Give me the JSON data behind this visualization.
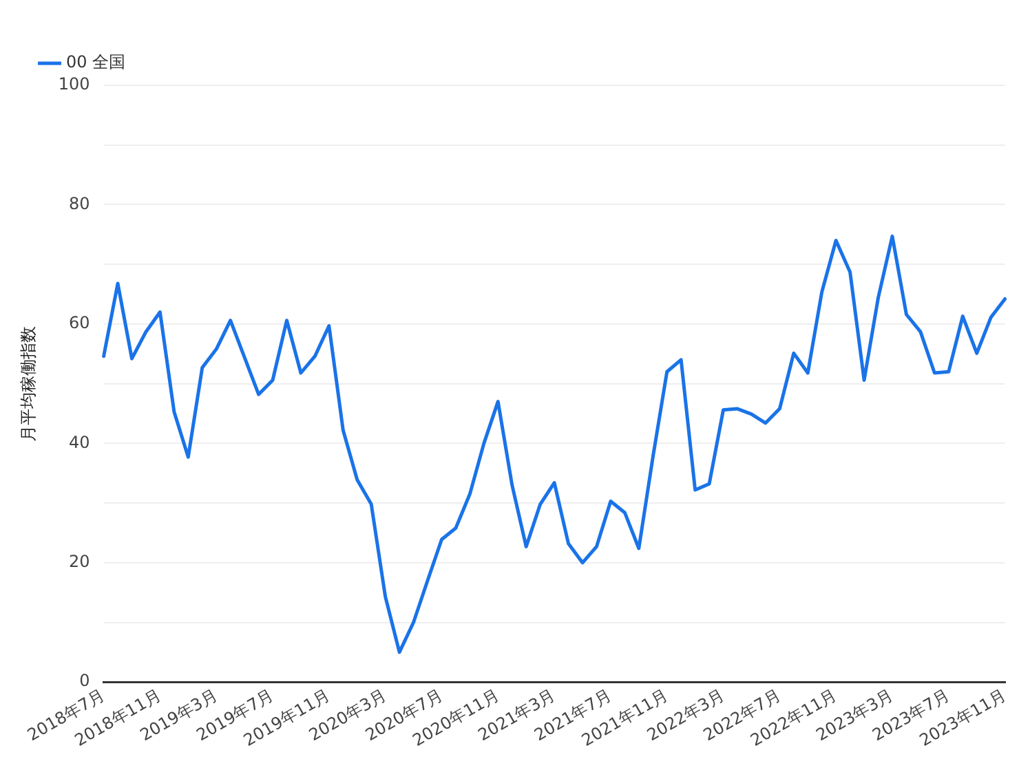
{
  "chart_data": {
    "type": "line",
    "ylabel": "月平均稼働指数",
    "categories": [
      "2018年7月",
      null,
      null,
      null,
      "2018年11月",
      null,
      null,
      null,
      "2019年3月",
      null,
      null,
      null,
      "2019年7月",
      null,
      null,
      null,
      "2019年11月",
      null,
      null,
      null,
      "2020年3月",
      null,
      null,
      null,
      "2020年7月",
      null,
      null,
      null,
      "2020年11月",
      null,
      null,
      null,
      "2021年3月",
      null,
      null,
      null,
      "2021年7月",
      null,
      null,
      null,
      "2021年11月",
      null,
      null,
      null,
      "2022年3月",
      null,
      null,
      null,
      "2022年7月",
      null,
      null,
      null,
      "2022年11月",
      null,
      null,
      null,
      "2023年3月",
      null,
      null,
      null,
      "2023年7月",
      null,
      null,
      null,
      "2023年11月"
    ],
    "series": [
      {
        "name": "00 全国",
        "color": "#1a73e8",
        "values": [
          54.6,
          66.8,
          54.2,
          58.7,
          62,
          45.3,
          37.7,
          52.7,
          55.8,
          60.6,
          54.4,
          48.2,
          50.6,
          60.6,
          51.8,
          54.6,
          59.7,
          42.2,
          33.9,
          29.8,
          14.3,
          5,
          10,
          17,
          23.9,
          25.8,
          31.5,
          40,
          47,
          33,
          22.7,
          29.8,
          33.4,
          23.2,
          20,
          22.7,
          30.3,
          28.4,
          22.4,
          37.7,
          52,
          54,
          32.2,
          33.2,
          45.6,
          45.8,
          44.9,
          43.4,
          45.8,
          55.1,
          51.8,
          65.4,
          74,
          68.7,
          50.6,
          64.4,
          74.7,
          61.6,
          58.7,
          51.8,
          52,
          61.3,
          55.1,
          61.1,
          64.2
        ]
      }
    ],
    "ylim": [
      0,
      100
    ],
    "yticks": [
      0,
      {
        "value": 10,
        "label": null
      },
      20,
      {
        "value": 30,
        "label": null
      },
      40,
      {
        "value": 50,
        "label": null
      },
      60,
      {
        "value": 70,
        "label": null
      },
      80,
      {
        "value": 90,
        "label": null
      },
      100
    ],
    "grid": "y",
    "legend": "top left",
    "marker": "none",
    "line_style": "solid"
  }
}
